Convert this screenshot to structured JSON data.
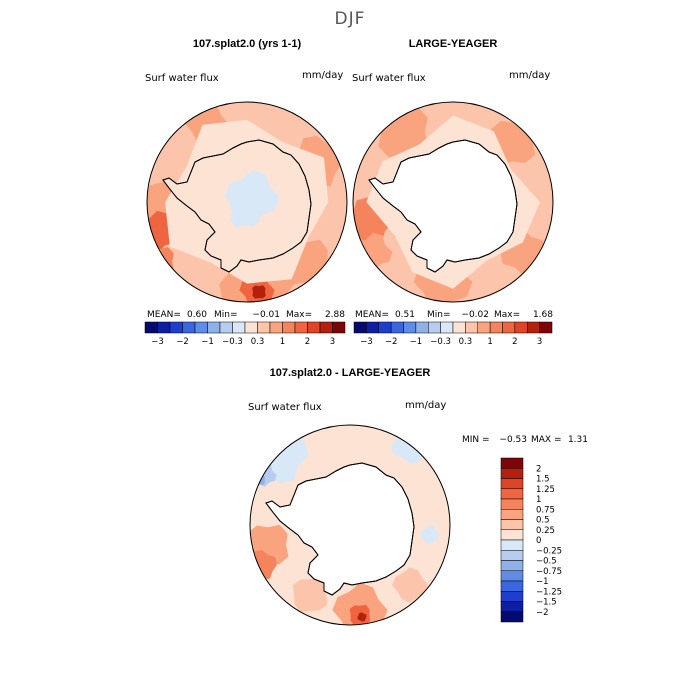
{
  "figure": {
    "title": "DJF",
    "colors": {
      "land": "#ffffff",
      "coast": "#000000",
      "pos": [
        "#fde3d3",
        "#fcc4aa",
        "#f9a47f",
        "#f5845c",
        "#ef653f",
        "#df4426",
        "#b3200e",
        "#7c0508"
      ],
      "neg": [
        "#d9e8f7",
        "#b6cdf0",
        "#8fb1ea",
        "#5e8ce6",
        "#3a66e0",
        "#1e3ed0",
        "#0c1fa3",
        "#050a6e"
      ]
    }
  },
  "panels": [
    {
      "id": "model",
      "title": "107.splat2.0 (yrs 1-1)",
      "variable": "Surf water flux",
      "units": "mm/day",
      "stats": {
        "mean_label": "MEAN=",
        "mean": "0.60",
        "min_label": "Min=",
        "min": "−0.01",
        "max_label": "Max=",
        "max": "2.88"
      },
      "colorbar": {
        "colors": [
          "#050a6e",
          "#0c1fa3",
          "#1e3ed0",
          "#3a66e0",
          "#5e8ce6",
          "#8fb1ea",
          "#b6cdf0",
          "#d9e8f7",
          "#fde3d3",
          "#fcc4aa",
          "#f9a47f",
          "#f5845c",
          "#ef653f",
          "#df4426",
          "#b3200e",
          "#7c0508"
        ],
        "ticks": [
          "−3",
          "−2",
          "−1",
          "−0.3",
          "0.3",
          "1",
          "2",
          "3"
        ]
      }
    },
    {
      "id": "obs",
      "title": "LARGE-YEAGER",
      "variable": "Surf water flux",
      "units": "mm/day",
      "stats": {
        "mean_label": "MEAN=",
        "mean": "0.51",
        "min_label": "Min=",
        "min": "−0.02",
        "max_label": "Max=",
        "max": "1.68"
      },
      "colorbar": {
        "colors": [
          "#050a6e",
          "#0c1fa3",
          "#1e3ed0",
          "#3a66e0",
          "#5e8ce6",
          "#8fb1ea",
          "#b6cdf0",
          "#d9e8f7",
          "#fde3d3",
          "#fcc4aa",
          "#f9a47f",
          "#f5845c",
          "#ef653f",
          "#df4426",
          "#b3200e",
          "#7c0508"
        ],
        "ticks": [
          "−3",
          "−2",
          "−1",
          "−0.3",
          "0.3",
          "1",
          "2",
          "3"
        ]
      }
    },
    {
      "id": "diff",
      "title": "107.splat2.0 - LARGE-YEAGER",
      "variable": "Surf water flux",
      "units": "mm/day",
      "stats": {
        "min_label": "MIN =",
        "min": "−0.53",
        "max_label": "MAX =",
        "max": "1.31"
      },
      "colorbar": {
        "colors": [
          "#7c0508",
          "#b3200e",
          "#df4426",
          "#ef653f",
          "#f5845c",
          "#f9a47f",
          "#fcc4aa",
          "#fde3d3",
          "#d9e8f7",
          "#b6cdf0",
          "#8fb1ea",
          "#5e8ce6",
          "#3a66e0",
          "#1e3ed0",
          "#0c1fa3",
          "#050a6e"
        ],
        "ticks": [
          "2",
          "1.5",
          "1.25",
          "1",
          "0.75",
          "0.5",
          "0.25",
          "0",
          "−0.25",
          "−0.5",
          "−0.75",
          "−1",
          "−1.25",
          "−1.5",
          "−2"
        ]
      }
    }
  ]
}
